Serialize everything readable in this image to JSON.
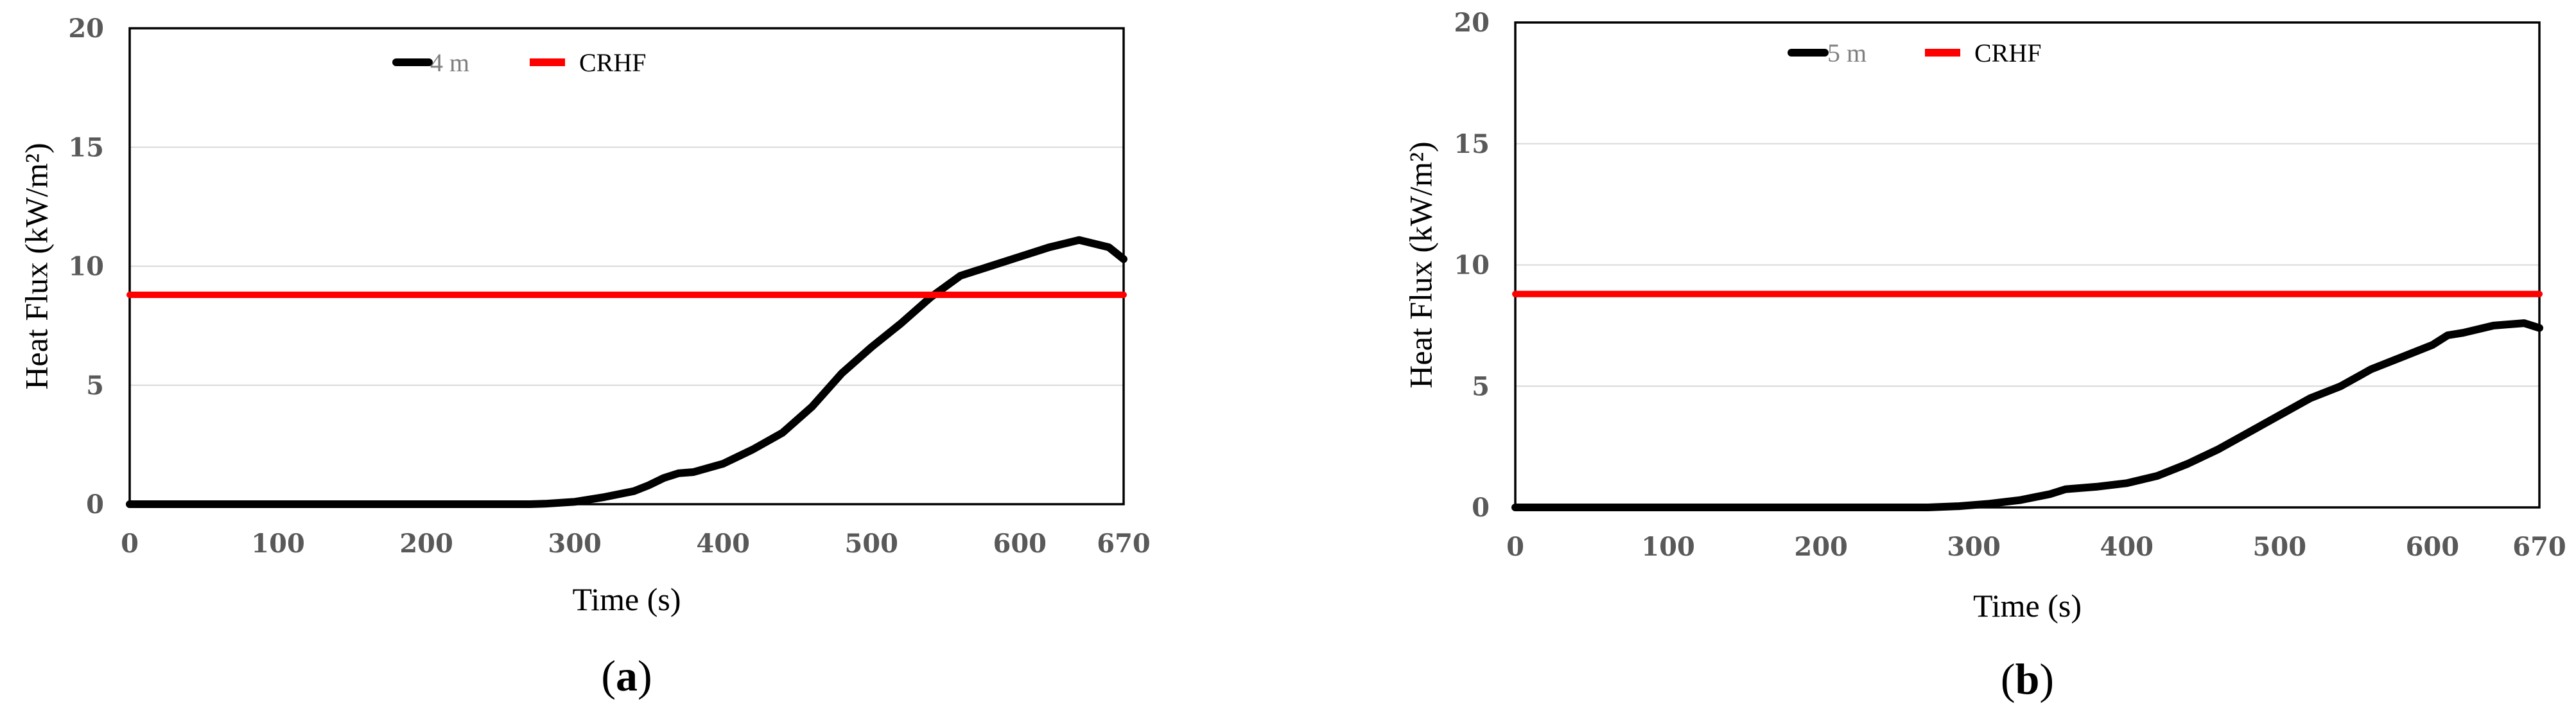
{
  "chart_data": [
    {
      "type": "line",
      "panel_label": "a",
      "xlabel": "Time (s)",
      "ylabel": "Heat Flux (kW/m²)",
      "xlim": [
        0,
        670
      ],
      "ylim": [
        0,
        20
      ],
      "x_ticks": [
        0,
        100,
        200,
        300,
        400,
        500,
        600,
        670
      ],
      "y_ticks": [
        0,
        5,
        10,
        15,
        20
      ],
      "grid": "horizontal",
      "legend_position": "top-center",
      "series": [
        {
          "name": "4 m",
          "color": "#000000",
          "x": [
            0,
            270,
            280,
            300,
            320,
            340,
            350,
            360,
            370,
            380,
            400,
            420,
            440,
            460,
            480,
            500,
            520,
            540,
            560,
            580,
            600,
            620,
            640,
            660,
            670
          ],
          "y": [
            0,
            0,
            0.02,
            0.1,
            0.3,
            0.55,
            0.8,
            1.1,
            1.3,
            1.35,
            1.7,
            2.3,
            3.0,
            4.1,
            5.5,
            6.6,
            7.6,
            8.7,
            9.6,
            10.0,
            10.4,
            10.8,
            11.1,
            10.8,
            10.3
          ]
        },
        {
          "name": "CRHF",
          "color": "#ff0000",
          "x": [
            0,
            670
          ],
          "y": [
            8.8,
            8.8
          ]
        }
      ]
    },
    {
      "type": "line",
      "panel_label": "b",
      "xlabel": "Time (s)",
      "ylabel": "Heat Flux (kW/m²)",
      "xlim": [
        0,
        670
      ],
      "ylim": [
        0,
        20
      ],
      "x_ticks": [
        0,
        100,
        200,
        300,
        400,
        500,
        600,
        670
      ],
      "y_ticks": [
        0,
        5,
        10,
        15,
        20
      ],
      "grid": "horizontal",
      "legend_position": "top-center",
      "series": [
        {
          "name": "5 m",
          "color": "#000000",
          "x": [
            0,
            270,
            290,
            310,
            330,
            350,
            360,
            380,
            400,
            420,
            440,
            460,
            480,
            500,
            520,
            540,
            560,
            580,
            600,
            610,
            620,
            640,
            660,
            670
          ],
          "y": [
            0,
            0,
            0.05,
            0.15,
            0.3,
            0.55,
            0.75,
            0.85,
            1.0,
            1.3,
            1.8,
            2.4,
            3.1,
            3.8,
            4.5,
            5.0,
            5.7,
            6.2,
            6.7,
            7.1,
            7.2,
            7.5,
            7.6,
            7.4
          ]
        },
        {
          "name": "CRHF",
          "color": "#ff0000",
          "x": [
            0,
            670
          ],
          "y": [
            8.8,
            8.8
          ]
        }
      ]
    }
  ]
}
